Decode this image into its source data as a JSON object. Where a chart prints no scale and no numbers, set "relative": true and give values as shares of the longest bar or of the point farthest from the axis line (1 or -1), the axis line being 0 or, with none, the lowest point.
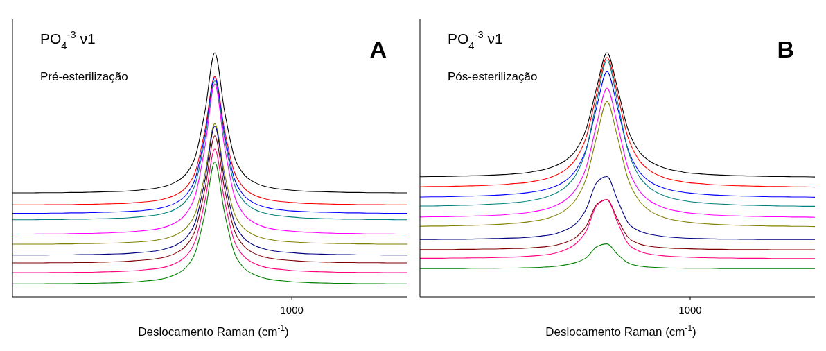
{
  "chart_data": [
    {
      "type": "line",
      "title": "A",
      "annotations": [
        "PO$_{4}$$^{-3}$ ν1",
        "Pré-esterilização",
        "1000"
      ],
      "xlabel": "Deslocamento Raman (cm$^{-1}$)",
      "relative": true,
      "tick_labels": "x",
      "categories": [
        null,
        null,
        null,
        null,
        null,
        null,
        null,
        null,
        null,
        null,
        null,
        null,
        null,
        null,
        null,
        null,
        null,
        null,
        null,
        null,
        null,
        null,
        null,
        null,
        null,
        null,
        null,
        null,
        null,
        null,
        null,
        null,
        null,
        null,
        null,
        null,
        null,
        null,
        null,
        null,
        null,
        null
      ],
      "series": [
        {
          "color": "#000000",
          "values": [
            0.426,
            0.426,
            0.426,
            0.427,
            0.427,
            0.427,
            0.428,
            0.428,
            0.429,
            0.43,
            0.431,
            0.432,
            0.434,
            0.437,
            0.441,
            0.446,
            0.455,
            0.472,
            0.503,
            0.577,
            0.764,
            1.0,
            0.764,
            0.577,
            0.503,
            0.472,
            0.455,
            0.446,
            0.441,
            0.437,
            0.434,
            0.432,
            0.431,
            0.43,
            0.429,
            0.428,
            0.428,
            0.427,
            0.427,
            0.427,
            0.426,
            0.426
          ]
        },
        {
          "color": "#ff0000",
          "values": [
            0.377,
            0.377,
            0.377,
            0.377,
            0.378,
            0.378,
            0.378,
            0.379,
            0.379,
            0.38,
            0.381,
            0.382,
            0.384,
            0.387,
            0.39,
            0.395,
            0.404,
            0.419,
            0.448,
            0.515,
            0.687,
            0.903,
            0.687,
            0.515,
            0.448,
            0.419,
            0.404,
            0.395,
            0.39,
            0.387,
            0.384,
            0.382,
            0.381,
            0.38,
            0.379,
            0.379,
            0.378,
            0.378,
            0.378,
            0.377,
            0.377,
            0.377
          ]
        },
        {
          "color": "#0000ff",
          "values": [
            0.342,
            0.342,
            0.342,
            0.342,
            0.343,
            0.343,
            0.344,
            0.344,
            0.345,
            0.346,
            0.347,
            0.348,
            0.35,
            0.352,
            0.356,
            0.361,
            0.37,
            0.386,
            0.417,
            0.488,
            0.669,
            0.898,
            0.669,
            0.488,
            0.417,
            0.386,
            0.37,
            0.361,
            0.356,
            0.352,
            0.35,
            0.348,
            0.347,
            0.346,
            0.345,
            0.344,
            0.344,
            0.343,
            0.343,
            0.342,
            0.342,
            0.342
          ]
        },
        {
          "color": "#008080",
          "values": [
            0.316,
            0.316,
            0.316,
            0.317,
            0.317,
            0.317,
            0.318,
            0.318,
            0.319,
            0.32,
            0.321,
            0.322,
            0.324,
            0.327,
            0.331,
            0.336,
            0.345,
            0.361,
            0.393,
            0.465,
            0.651,
            0.885,
            0.651,
            0.465,
            0.393,
            0.361,
            0.345,
            0.336,
            0.331,
            0.327,
            0.324,
            0.322,
            0.321,
            0.32,
            0.319,
            0.318,
            0.318,
            0.317,
            0.317,
            0.317,
            0.316,
            0.316
          ]
        },
        {
          "color": "#ff00ff",
          "values": [
            0.257,
            0.257,
            0.257,
            0.258,
            0.258,
            0.258,
            0.259,
            0.26,
            0.26,
            0.261,
            0.262,
            0.264,
            0.266,
            0.269,
            0.273,
            0.278,
            0.288,
            0.306,
            0.34,
            0.419,
            0.619,
            0.872,
            0.619,
            0.419,
            0.34,
            0.306,
            0.288,
            0.278,
            0.273,
            0.269,
            0.266,
            0.264,
            0.262,
            0.261,
            0.26,
            0.26,
            0.259,
            0.258,
            0.258,
            0.258,
            0.257,
            0.257
          ]
        },
        {
          "color": "#808000",
          "values": [
            0.216,
            0.216,
            0.216,
            0.216,
            0.216,
            0.217,
            0.217,
            0.218,
            0.218,
            0.219,
            0.22,
            0.221,
            0.223,
            0.225,
            0.228,
            0.233,
            0.241,
            0.255,
            0.282,
            0.345,
            0.507,
            0.71,
            0.507,
            0.345,
            0.282,
            0.255,
            0.241,
            0.233,
            0.228,
            0.225,
            0.223,
            0.221,
            0.22,
            0.219,
            0.218,
            0.218,
            0.217,
            0.217,
            0.216,
            0.216,
            0.216,
            0.216
          ]
        },
        {
          "color": "#000080",
          "values": [
            0.171,
            0.171,
            0.171,
            0.171,
            0.172,
            0.172,
            0.172,
            0.173,
            0.173,
            0.174,
            0.175,
            0.176,
            0.178,
            0.181,
            0.184,
            0.189,
            0.198,
            0.213,
            0.242,
            0.309,
            0.482,
            0.7,
            0.482,
            0.309,
            0.242,
            0.213,
            0.198,
            0.189,
            0.184,
            0.181,
            0.178,
            0.176,
            0.175,
            0.174,
            0.173,
            0.173,
            0.172,
            0.172,
            0.172,
            0.171,
            0.171,
            0.171
          ]
        },
        {
          "color": "#800000",
          "values": [
            0.139,
            0.139,
            0.139,
            0.139,
            0.14,
            0.14,
            0.14,
            0.141,
            0.141,
            0.142,
            0.143,
            0.144,
            0.146,
            0.149,
            0.152,
            0.157,
            0.165,
            0.18,
            0.209,
            0.276,
            0.446,
            0.66,
            0.446,
            0.276,
            0.209,
            0.18,
            0.165,
            0.157,
            0.152,
            0.149,
            0.146,
            0.144,
            0.143,
            0.142,
            0.141,
            0.141,
            0.14,
            0.14,
            0.14,
            0.139,
            0.139,
            0.139
          ]
        },
        {
          "color": "#ff0080",
          "values": [
            0.099,
            0.099,
            0.099,
            0.099,
            0.1,
            0.1,
            0.1,
            0.101,
            0.101,
            0.102,
            0.103,
            0.104,
            0.106,
            0.108,
            0.112,
            0.116,
            0.124,
            0.139,
            0.167,
            0.232,
            0.397,
            0.606,
            0.397,
            0.232,
            0.167,
            0.139,
            0.124,
            0.116,
            0.112,
            0.108,
            0.106,
            0.104,
            0.103,
            0.102,
            0.101,
            0.101,
            0.1,
            0.1,
            0.1,
            0.099,
            0.099,
            0.099
          ]
        },
        {
          "color": "#008000",
          "values": [
            0.053,
            0.053,
            0.053,
            0.053,
            0.054,
            0.054,
            0.054,
            0.055,
            0.055,
            0.056,
            0.057,
            0.058,
            0.06,
            0.062,
            0.066,
            0.07,
            0.078,
            0.093,
            0.12,
            0.184,
            0.347,
            0.552,
            0.347,
            0.184,
            0.12,
            0.093,
            0.078,
            0.07,
            0.066,
            0.062,
            0.06,
            0.058,
            0.057,
            0.056,
            0.055,
            0.055,
            0.054,
            0.054,
            0.054,
            0.053,
            0.053,
            0.053
          ]
        }
      ]
    },
    {
      "type": "line",
      "title": "B",
      "annotations": [
        "PO$_{4}$$^{-3}$ ν1",
        "Pós-esterilização",
        "1000"
      ],
      "xlabel": "Deslocamento Raman (cm$^{-1}$)",
      "relative": true,
      "tick_labels": "x",
      "categories": [
        null,
        null,
        null,
        null,
        null,
        null,
        null,
        null,
        null,
        null,
        null,
        null,
        null,
        null,
        null,
        null,
        null,
        null,
        null,
        null,
        null,
        null,
        null,
        null,
        null,
        null,
        null,
        null,
        null,
        null,
        null,
        null,
        null,
        null,
        null,
        null,
        null,
        null,
        null
      ],
      "series": [
        {
          "color": "#000000",
          "values": [
            0.492,
            0.493,
            0.493,
            0.494,
            0.495,
            0.496,
            0.497,
            0.499,
            0.501,
            0.504,
            0.507,
            0.514,
            0.522,
            0.536,
            0.559,
            0.601,
            0.688,
            0.856,
            1.0,
            0.856,
            0.688,
            0.601,
            0.559,
            0.536,
            0.522,
            0.514,
            0.507,
            0.504,
            0.501,
            0.499,
            0.497,
            0.496,
            0.495,
            0.494,
            0.493,
            0.493,
            0.492,
            0.492,
            0.491
          ]
        },
        {
          "color": "#ff0000",
          "values": [
            0.451,
            0.452,
            0.452,
            0.453,
            0.454,
            0.455,
            0.456,
            0.458,
            0.46,
            0.464,
            0.467,
            0.474,
            0.482,
            0.497,
            0.521,
            0.565,
            0.655,
            0.831,
            0.981,
            0.831,
            0.655,
            0.565,
            0.521,
            0.497,
            0.482,
            0.474,
            0.467,
            0.464,
            0.46,
            0.458,
            0.456,
            0.455,
            0.454,
            0.453,
            0.452,
            0.452,
            0.451,
            0.451,
            0.45
          ]
        },
        {
          "color": "#0000ff",
          "values": [
            0.409,
            0.41,
            0.41,
            0.411,
            0.412,
            0.413,
            0.414,
            0.416,
            0.418,
            0.421,
            0.425,
            0.431,
            0.439,
            0.453,
            0.476,
            0.519,
            0.607,
            0.777,
            0.923,
            0.777,
            0.607,
            0.519,
            0.476,
            0.453,
            0.439,
            0.431,
            0.425,
            0.421,
            0.418,
            0.416,
            0.414,
            0.413,
            0.412,
            0.411,
            0.41,
            0.41,
            0.409,
            0.409,
            0.408
          ]
        },
        {
          "color": "#008080",
          "values": [
            0.372,
            0.372,
            0.373,
            0.374,
            0.375,
            0.376,
            0.378,
            0.38,
            0.382,
            0.386,
            0.39,
            0.397,
            0.407,
            0.423,
            0.45,
            0.5,
            0.602,
            0.801,
            0.97,
            0.801,
            0.602,
            0.5,
            0.45,
            0.423,
            0.407,
            0.397,
            0.39,
            0.386,
            0.382,
            0.38,
            0.378,
            0.376,
            0.375,
            0.374,
            0.373,
            0.372,
            0.372,
            0.371,
            0.371
          ]
        },
        {
          "color": "#ff00ff",
          "values": [
            0.327,
            0.328,
            0.328,
            0.329,
            0.33,
            0.331,
            0.332,
            0.334,
            0.336,
            0.34,
            0.343,
            0.35,
            0.358,
            0.373,
            0.397,
            0.441,
            0.531,
            0.706,
            0.855,
            0.706,
            0.531,
            0.441,
            0.397,
            0.373,
            0.358,
            0.35,
            0.343,
            0.34,
            0.336,
            0.334,
            0.332,
            0.331,
            0.33,
            0.329,
            0.328,
            0.328,
            0.327,
            0.327,
            0.326
          ]
        },
        {
          "color": "#808000",
          "values": [
            0.289,
            0.29,
            0.29,
            0.291,
            0.292,
            0.293,
            0.294,
            0.296,
            0.298,
            0.301,
            0.305,
            0.311,
            0.319,
            0.333,
            0.356,
            0.399,
            0.486,
            0.655,
            0.8,
            0.655,
            0.486,
            0.399,
            0.356,
            0.333,
            0.319,
            0.311,
            0.305,
            0.301,
            0.298,
            0.296,
            0.294,
            0.293,
            0.292,
            0.291,
            0.29,
            0.29,
            0.289,
            0.289,
            0.288
          ]
        },
        {
          "color": "#000080",
          "values": [
            0.235,
            0.235,
            0.236,
            0.236,
            0.236,
            0.237,
            0.238,
            0.239,
            0.24,
            0.241,
            0.243,
            0.246,
            0.251,
            0.258,
            0.274,
            0.3,
            0.36,
            0.468,
            0.493,
            0.398,
            0.305,
            0.272,
            0.258,
            0.25,
            0.245,
            0.242,
            0.24,
            0.239,
            0.238,
            0.237,
            0.237,
            0.236,
            0.236,
            0.235,
            0.235,
            0.235,
            0.235,
            0.235,
            0.235
          ]
        },
        {
          "color": "#800000",
          "values": [
            0.194,
            0.194,
            0.194,
            0.194,
            0.195,
            0.195,
            0.196,
            0.196,
            0.197,
            0.198,
            0.199,
            0.202,
            0.205,
            0.211,
            0.223,
            0.244,
            0.29,
            0.378,
            0.398,
            0.32,
            0.245,
            0.219,
            0.208,
            0.203,
            0.2,
            0.198,
            0.197,
            0.196,
            0.195,
            0.195,
            0.194,
            0.194,
            0.194,
            0.194,
            0.193,
            0.193,
            0.193,
            0.193,
            0.193
          ]
        },
        {
          "color": "#ff0080",
          "values": [
            0.158,
            0.158,
            0.158,
            0.159,
            0.159,
            0.16,
            0.16,
            0.161,
            0.162,
            0.163,
            0.165,
            0.168,
            0.172,
            0.179,
            0.193,
            0.218,
            0.27,
            0.374,
            0.398,
            0.307,
            0.219,
            0.189,
            0.176,
            0.17,
            0.166,
            0.164,
            0.162,
            0.161,
            0.16,
            0.159,
            0.159,
            0.158,
            0.158,
            0.158,
            0.157,
            0.157,
            0.157,
            0.157,
            0.157
          ]
        },
        {
          "color": "#008000",
          "values": [
            0.116,
            0.116,
            0.116,
            0.116,
            0.116,
            0.117,
            0.117,
            0.117,
            0.118,
            0.118,
            0.119,
            0.12,
            0.122,
            0.125,
            0.131,
            0.141,
            0.16,
            0.205,
            0.217,
            0.175,
            0.14,
            0.127,
            0.122,
            0.12,
            0.118,
            0.118,
            0.117,
            0.117,
            0.117,
            0.116,
            0.116,
            0.116,
            0.116,
            0.116,
            0.116,
            0.116,
            0.116,
            0.116,
            0.116
          ]
        }
      ]
    }
  ]
}
